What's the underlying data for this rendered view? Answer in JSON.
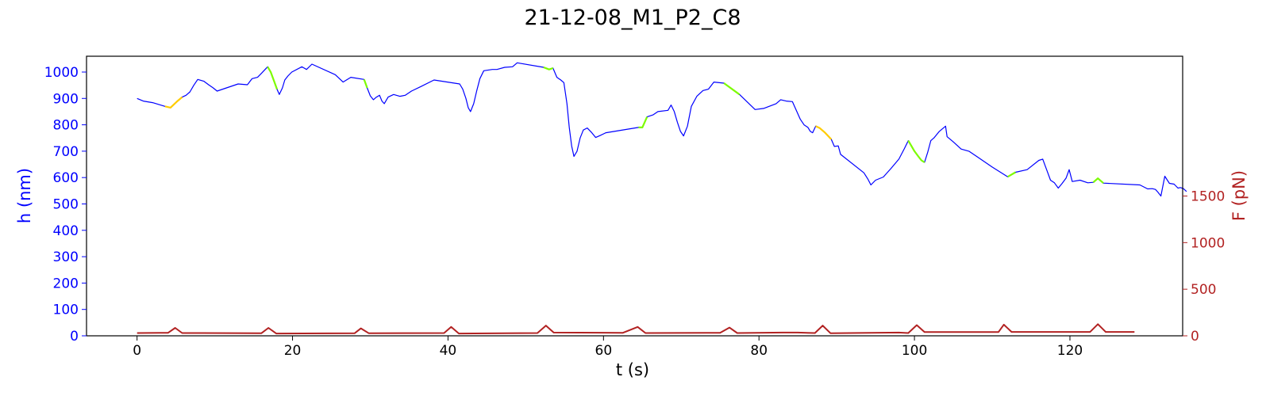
{
  "chart_data": {
    "type": "line",
    "title": "21-12-08_M1_P2_C8",
    "xlabel": "t (s)",
    "ylabel_left": "h (nm)",
    "ylabel_right": "F (pN)",
    "xlim": [
      -6.5,
      134.5
    ],
    "ylim_left": [
      0,
      1060
    ],
    "ylim_right": [
      0,
      3000
    ],
    "x_ticks": [
      0,
      20,
      40,
      60,
      80,
      100,
      120
    ],
    "y_left_ticks": [
      0,
      100,
      200,
      300,
      400,
      500,
      600,
      700,
      800,
      900,
      1000
    ],
    "y_right_ticks": [
      0,
      500,
      1000,
      1500
    ],
    "grid": false,
    "colors": {
      "height": "#0000ff",
      "force": "#b22222",
      "highlight_green": "#7cfc00",
      "highlight_yellow": "#ffcc00",
      "left_axis": "#0000ff",
      "right_axis": "#b22222"
    },
    "series": [
      {
        "id": "height",
        "color": "#0000ff",
        "axis": "left",
        "points": [
          [
            0,
            900
          ],
          [
            0.8,
            890
          ],
          [
            2,
            884
          ],
          [
            3.6,
            870
          ],
          [
            4.3,
            865
          ],
          [
            5.2,
            890
          ],
          [
            5.8,
            905
          ],
          [
            6.3,
            912
          ],
          [
            6.8,
            925
          ],
          [
            7.3,
            950
          ],
          [
            7.8,
            972
          ],
          [
            8.6,
            965
          ],
          [
            9.2,
            952
          ],
          [
            9.8,
            940
          ],
          [
            10.3,
            928
          ],
          [
            13,
            955
          ],
          [
            14.2,
            952
          ],
          [
            14.8,
            975
          ],
          [
            15.5,
            980
          ],
          [
            16,
            995
          ],
          [
            16.8,
            1020
          ],
          [
            17.2,
            1000
          ],
          [
            17.6,
            968
          ],
          [
            18,
            935
          ],
          [
            18.3,
            915
          ],
          [
            18.7,
            940
          ],
          [
            19,
            970
          ],
          [
            19.4,
            985
          ],
          [
            19.9,
            1000
          ],
          [
            21.2,
            1020
          ],
          [
            21.8,
            1010
          ],
          [
            22.5,
            1030
          ],
          [
            25.5,
            990
          ],
          [
            26.5,
            962
          ],
          [
            27.5,
            980
          ],
          [
            29.2,
            972
          ],
          [
            29.6,
            940
          ],
          [
            30,
            910
          ],
          [
            30.4,
            895
          ],
          [
            30.8,
            905
          ],
          [
            31.2,
            912
          ],
          [
            31.5,
            890
          ],
          [
            31.8,
            880
          ],
          [
            32.3,
            905
          ],
          [
            33,
            915
          ],
          [
            33.8,
            908
          ],
          [
            34.5,
            912
          ],
          [
            35.3,
            928
          ],
          [
            36.5,
            945
          ],
          [
            38.2,
            970
          ],
          [
            41.5,
            955
          ],
          [
            41.9,
            935
          ],
          [
            42.3,
            900
          ],
          [
            42.6,
            865
          ],
          [
            42.9,
            850
          ],
          [
            43.3,
            880
          ],
          [
            43.7,
            930
          ],
          [
            44.1,
            975
          ],
          [
            44.6,
            1005
          ],
          [
            45.7,
            1010
          ],
          [
            46.3,
            1010
          ],
          [
            47.3,
            1018
          ],
          [
            48.3,
            1020
          ],
          [
            48.9,
            1035
          ],
          [
            52.3,
            1018
          ],
          [
            53,
            1010
          ],
          [
            53.5,
            1015
          ],
          [
            54,
            980
          ],
          [
            54.5,
            970
          ],
          [
            54.9,
            960
          ],
          [
            55.3,
            880
          ],
          [
            55.6,
            790
          ],
          [
            55.9,
            720
          ],
          [
            56.2,
            680
          ],
          [
            56.6,
            700
          ],
          [
            57,
            750
          ],
          [
            57.4,
            780
          ],
          [
            57.9,
            788
          ],
          [
            58.5,
            770
          ],
          [
            59,
            752
          ],
          [
            59.6,
            760
          ],
          [
            60.3,
            770
          ],
          [
            64.5,
            790
          ],
          [
            65,
            790
          ],
          [
            65.6,
            830
          ],
          [
            66.4,
            838
          ],
          [
            67,
            850
          ],
          [
            68.3,
            855
          ],
          [
            68.7,
            875
          ],
          [
            69.1,
            850
          ],
          [
            69.5,
            810
          ],
          [
            69.9,
            775
          ],
          [
            70.3,
            758
          ],
          [
            70.8,
            795
          ],
          [
            71.3,
            870
          ],
          [
            72,
            908
          ],
          [
            72.8,
            930
          ],
          [
            73.5,
            935
          ],
          [
            74.2,
            962
          ],
          [
            75.5,
            958
          ],
          [
            77.5,
            915
          ],
          [
            79.5,
            858
          ],
          [
            80.6,
            862
          ],
          [
            82.2,
            880
          ],
          [
            82.8,
            895
          ],
          [
            83.5,
            890
          ],
          [
            84.3,
            888
          ],
          [
            84.8,
            855
          ],
          [
            85.3,
            822
          ],
          [
            85.8,
            800
          ],
          [
            86.3,
            790
          ],
          [
            86.6,
            775
          ],
          [
            86.9,
            770
          ],
          [
            87.3,
            795
          ],
          [
            87.8,
            788
          ],
          [
            88.5,
            770
          ],
          [
            89.3,
            745
          ],
          [
            89.7,
            718
          ],
          [
            90.2,
            720
          ],
          [
            90.5,
            688
          ],
          [
            93.5,
            618
          ],
          [
            94,
            595
          ],
          [
            94.4,
            572
          ],
          [
            95,
            590
          ],
          [
            96,
            602
          ],
          [
            97,
            635
          ],
          [
            98,
            670
          ],
          [
            98.7,
            710
          ],
          [
            99.2,
            740
          ],
          [
            99.6,
            720
          ],
          [
            100,
            700
          ],
          [
            100.5,
            680
          ],
          [
            100.9,
            665
          ],
          [
            101.3,
            658
          ],
          [
            101.7,
            695
          ],
          [
            102.1,
            740
          ],
          [
            102.5,
            750
          ],
          [
            103.2,
            775
          ],
          [
            104,
            795
          ],
          [
            104.2,
            755
          ],
          [
            105,
            735
          ],
          [
            106,
            708
          ],
          [
            107,
            700
          ],
          [
            108,
            680
          ],
          [
            110,
            640
          ],
          [
            112,
            603
          ],
          [
            113,
            620
          ],
          [
            114.5,
            630
          ],
          [
            116,
            665
          ],
          [
            116.5,
            670
          ],
          [
            117,
            630
          ],
          [
            117.5,
            590
          ],
          [
            118,
            580
          ],
          [
            118.5,
            560
          ],
          [
            119,
            578
          ],
          [
            119.5,
            598
          ],
          [
            119.9,
            630
          ],
          [
            120.3,
            585
          ],
          [
            121.3,
            590
          ],
          [
            122.3,
            580
          ],
          [
            123,
            582
          ],
          [
            123.6,
            597
          ],
          [
            124.3,
            579
          ],
          [
            129,
            572
          ],
          [
            130,
            557
          ],
          [
            130.6,
            558
          ],
          [
            131,
            555
          ],
          [
            131.3,
            545
          ],
          [
            131.7,
            530
          ],
          [
            132.2,
            605
          ],
          [
            132.8,
            578
          ],
          [
            133.4,
            575
          ],
          [
            133.9,
            560
          ],
          [
            134.2,
            562
          ],
          [
            134.6,
            558
          ],
          [
            135,
            547
          ]
        ]
      },
      {
        "id": "force",
        "color": "#b22222",
        "axis": "right",
        "points": [
          [
            0,
            30
          ],
          [
            3,
            32
          ],
          [
            4,
            32
          ],
          [
            4.9,
            85
          ],
          [
            5.8,
            30
          ],
          [
            16,
            28
          ],
          [
            16.9,
            85
          ],
          [
            17.9,
            25
          ],
          [
            28,
            28
          ],
          [
            28.8,
            80
          ],
          [
            29.8,
            28
          ],
          [
            39.5,
            30
          ],
          [
            40.4,
            95
          ],
          [
            41.4,
            25
          ],
          [
            51.5,
            30
          ],
          [
            52.6,
            110
          ],
          [
            53.6,
            35
          ],
          [
            62.5,
            32
          ],
          [
            64.4,
            95
          ],
          [
            65.4,
            30
          ],
          [
            75,
            32
          ],
          [
            76.2,
            88
          ],
          [
            77.2,
            30
          ],
          [
            83,
            35
          ],
          [
            85,
            35
          ],
          [
            87.2,
            30
          ],
          [
            88.2,
            110
          ],
          [
            89.2,
            28
          ],
          [
            98,
            35
          ],
          [
            99.2,
            30
          ],
          [
            100.3,
            115
          ],
          [
            101.3,
            40
          ],
          [
            110.8,
            40
          ],
          [
            111.5,
            120
          ],
          [
            112.5,
            42
          ],
          [
            122.6,
            42
          ],
          [
            123.6,
            125
          ],
          [
            124.6,
            42
          ],
          [
            128.3,
            42
          ]
        ]
      }
    ],
    "highlight_segments": [
      {
        "color": "#ffcc00",
        "t_start": 3.6,
        "t_end": 5.8
      },
      {
        "color": "#7cfc00",
        "t_start": 16.2,
        "t_end": 18.0
      },
      {
        "color": "#7cfc00",
        "t_start": 28.1,
        "t_end": 29.8
      },
      {
        "color": "#7cfc00",
        "t_start": 39.6,
        "t_end": 41.6
      },
      {
        "color": "#7cfc00",
        "t_start": 51.7,
        "t_end": 53.8
      },
      {
        "color": "#7cfc00",
        "t_start": 63.5,
        "t_end": 65.8
      },
      {
        "color": "#7cfc00",
        "t_start": 75.3,
        "t_end": 77.5
      },
      {
        "color": "#ffcc00",
        "t_start": 87.0,
        "t_end": 89.5
      },
      {
        "color": "#7cfc00",
        "t_start": 99.0,
        "t_end": 101.5
      },
      {
        "color": "#7cfc00",
        "t_start": 110.9,
        "t_end": 113.2
      },
      {
        "color": "#7cfc00",
        "t_start": 122.8,
        "t_end": 125.0
      }
    ]
  }
}
